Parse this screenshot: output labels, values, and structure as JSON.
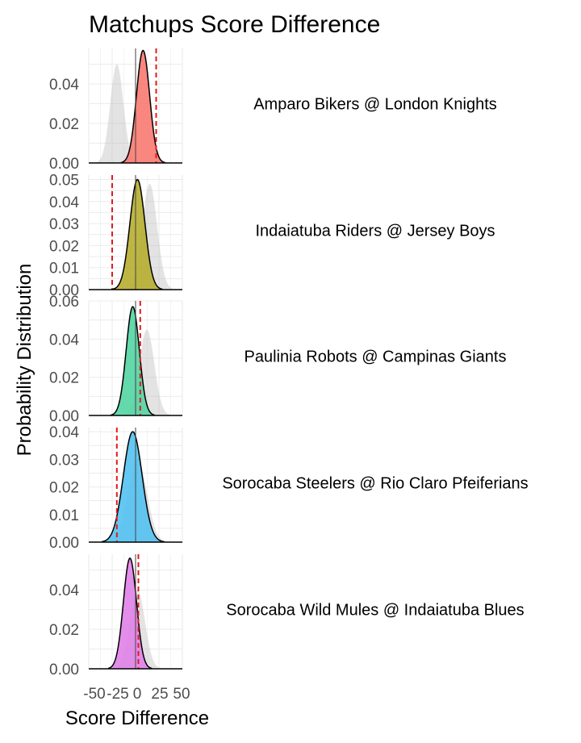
{
  "chart_data": {
    "type": "area",
    "title": "Matchups Score Difference",
    "xlabel": "Score Difference",
    "ylabel": "Probability Distribution",
    "xlim": [
      -50,
      50
    ],
    "x_ticks": [
      "-50",
      "-25",
      "0",
      "25",
      "50"
    ],
    "grid": true,
    "colors": {
      "grey_distribution": "#bdbdbd",
      "red_line": "#e31a1c"
    },
    "panels": [
      {
        "label": "Amparo Bikers @ London Knights",
        "fill_color": "#f8766d",
        "ylim": [
          0,
          0.058
        ],
        "y_ticks": [
          "0.00",
          "0.02",
          "0.04"
        ],
        "y_tick_values": [
          0,
          0.02,
          0.04
        ],
        "main": {
          "mean": 8,
          "sd": 7,
          "peak": 0.057
        },
        "grey": {
          "mean": -20,
          "sd": 7,
          "peak": 0.05
        },
        "red_line": 22
      },
      {
        "label": "Indaiatuba Riders @ Jersey Boys",
        "fill_color": "#b5ac2a",
        "ylim": [
          0,
          0.052
        ],
        "y_ticks": [
          "0.00",
          "0.01",
          "0.02",
          "0.03",
          "0.04",
          "0.05"
        ],
        "y_tick_values": [
          0,
          0.01,
          0.02,
          0.03,
          0.04,
          0.05
        ],
        "main": {
          "mean": 2,
          "sd": 8,
          "peak": 0.05
        },
        "grey": {
          "mean": 15,
          "sd": 8,
          "peak": 0.048
        },
        "red_line": -25
      },
      {
        "label": "Paulinia Robots @ Campinas Giants",
        "fill_color": "#4fd4a0",
        "ylim": [
          0,
          0.06
        ],
        "y_ticks": [
          "0.00",
          "0.02",
          "0.04",
          "0.06"
        ],
        "y_tick_values": [
          0,
          0.02,
          0.04,
          0.06
        ],
        "main": {
          "mean": -3,
          "sd": 7,
          "peak": 0.057
        },
        "grey": {
          "mean": 12,
          "sd": 8,
          "peak": 0.045
        },
        "red_line": 5
      },
      {
        "label": "Sorocaba Steelers @ Rio Claro Pfeiferians",
        "fill_color": "#4fc0f0",
        "ylim": [
          0,
          0.0415
        ],
        "y_ticks": [
          "0.00",
          "0.01",
          "0.02",
          "0.03",
          "0.04"
        ],
        "y_tick_values": [
          0,
          0.01,
          0.02,
          0.03,
          0.04
        ],
        "main": {
          "mean": -3,
          "sd": 10,
          "peak": 0.04
        },
        "grey": {
          "mean": 2,
          "sd": 10,
          "peak": 0.03
        },
        "red_line": -20
      },
      {
        "label": "Sorocaba Wild Mules @ Indaiatuba Blues",
        "fill_color": "#e07ee8",
        "ylim": [
          0,
          0.058
        ],
        "y_ticks": [
          "0.00",
          "0.02",
          "0.04"
        ],
        "y_tick_values": [
          0,
          0.02,
          0.04
        ],
        "main": {
          "mean": -6,
          "sd": 7,
          "peak": 0.056
        },
        "grey": {
          "mean": 2,
          "sd": 8,
          "peak": 0.04
        },
        "red_line": 3
      }
    ]
  }
}
